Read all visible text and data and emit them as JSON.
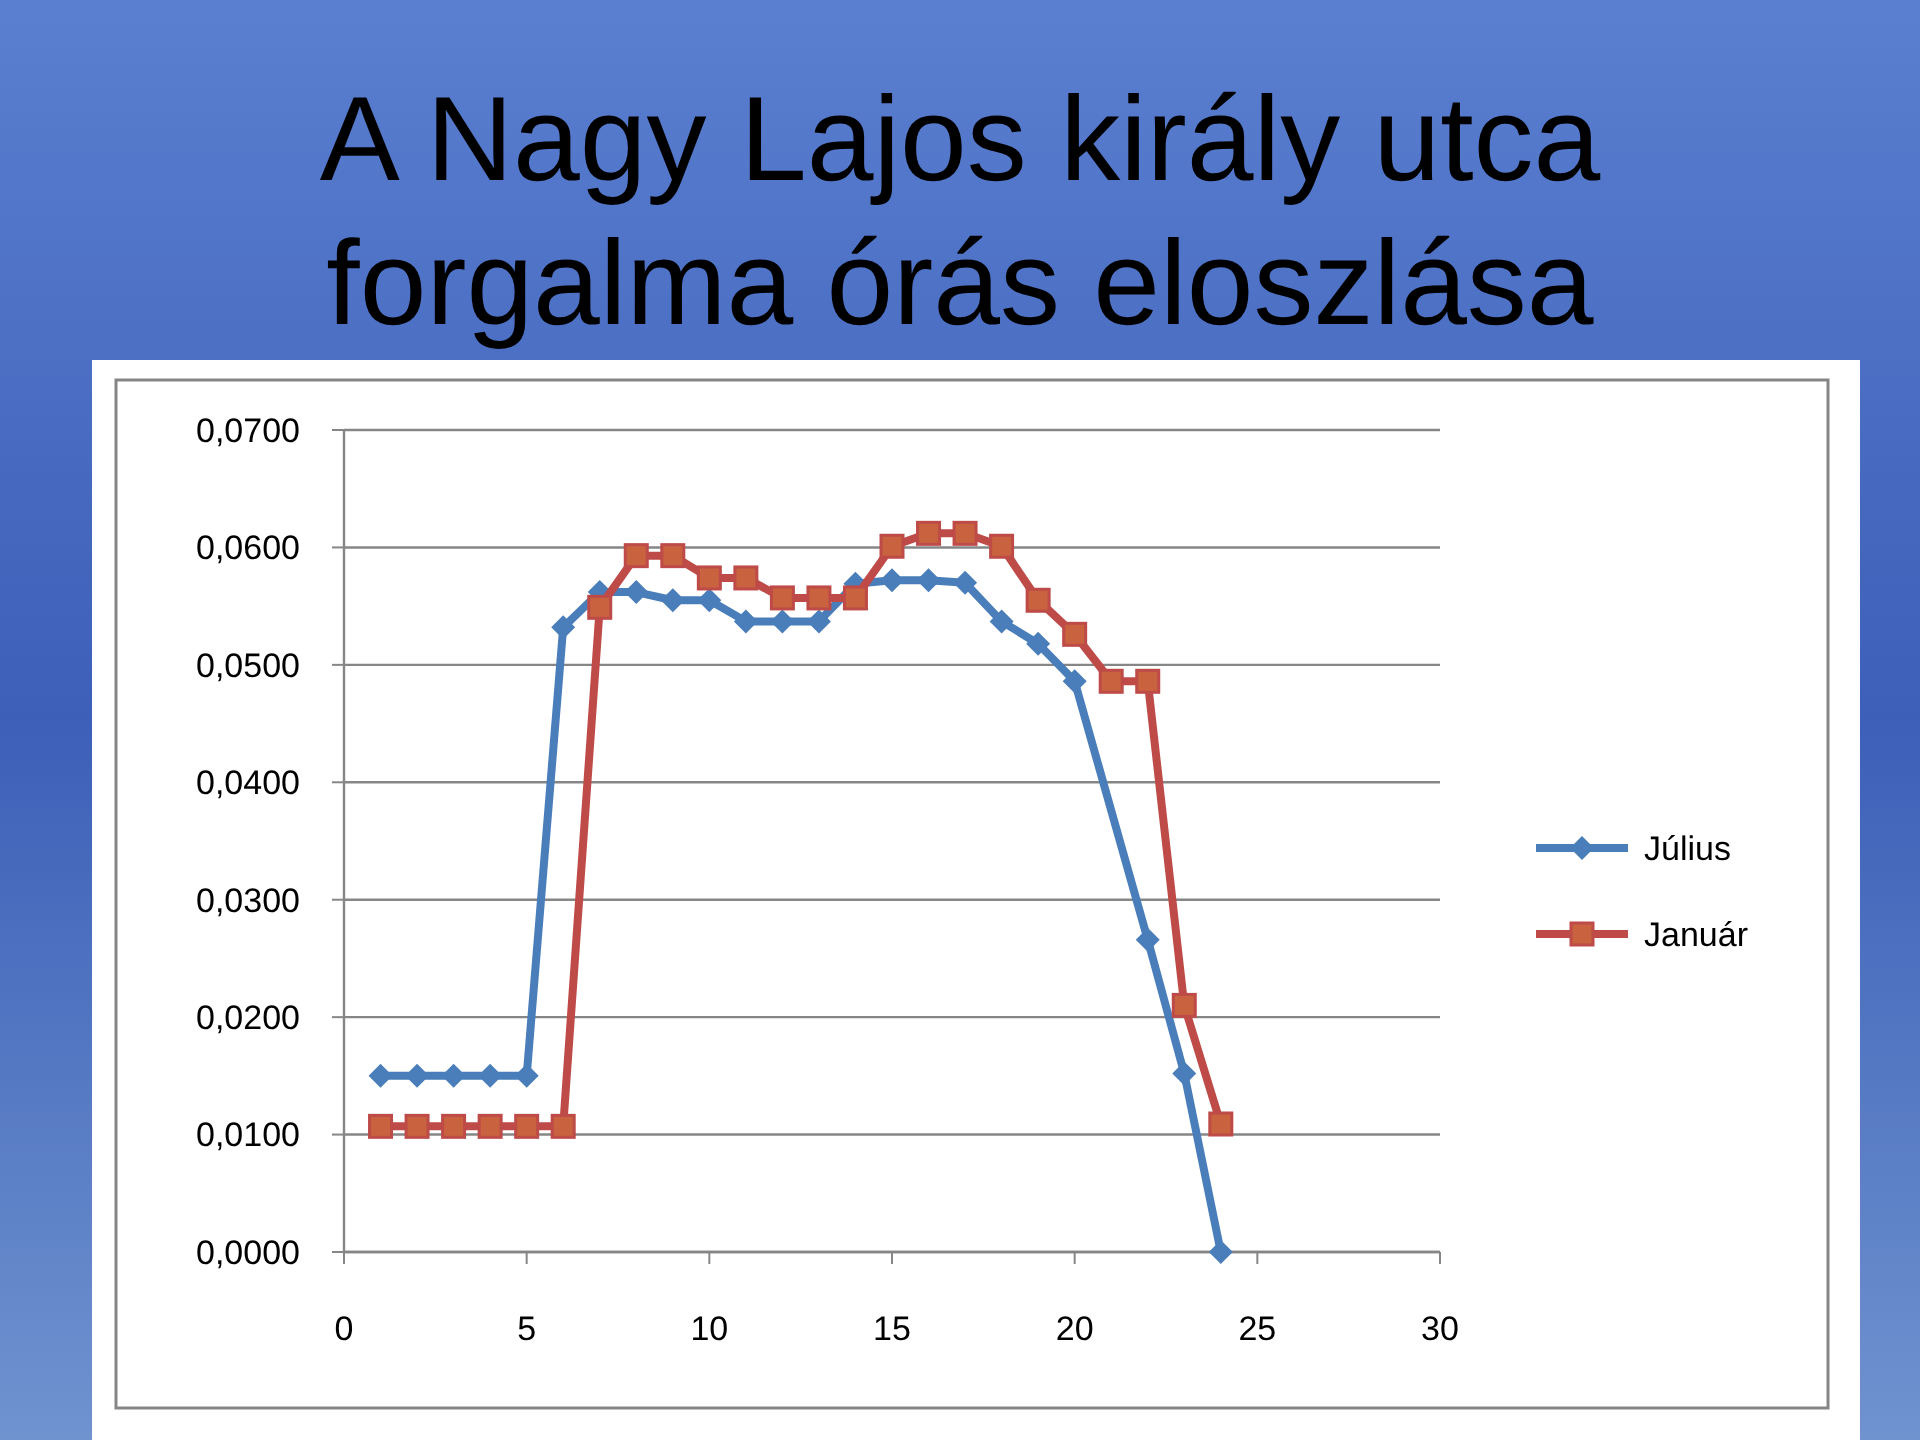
{
  "chart_data": {
    "type": "line",
    "title": "A Nagy Lajos király utca forgalma órás eloszlása",
    "xlim": [
      0,
      30
    ],
    "xticks": [
      0,
      5,
      10,
      15,
      20,
      25,
      30
    ],
    "ylim": [
      0,
      0.07
    ],
    "yticks": [
      {
        "value": 0,
        "label": "0,0000"
      },
      {
        "value": 0.01,
        "label": "0,0100"
      },
      {
        "value": 0.02,
        "label": "0,0200"
      },
      {
        "value": 0.03,
        "label": "0,0300"
      },
      {
        "value": 0.04,
        "label": "0,0400"
      },
      {
        "value": 0.05,
        "label": "0,0500"
      },
      {
        "value": 0.06,
        "label": "0,0600"
      },
      {
        "value": 0.07,
        "label": "0,0700"
      }
    ],
    "grid": "y",
    "legend": "right",
    "series": [
      {
        "name": "Július",
        "color": "#4a7ebb",
        "marker": "diamond",
        "x": [
          1,
          2,
          3,
          4,
          5,
          6,
          7,
          8,
          9,
          10,
          11,
          12,
          13,
          14,
          15,
          16,
          17,
          18,
          19,
          20,
          21,
          22,
          23,
          24
        ],
        "values": [
          0.015,
          0.015,
          0.015,
          0.015,
          0.015,
          0.0532,
          0.0562,
          0.0562,
          0.0555,
          0.0555,
          0.0537,
          0.0537,
          0.0537,
          0.0569,
          0.0572,
          0.0572,
          0.057,
          0.0537,
          0.0518,
          0.0486,
          null,
          0.0266,
          0.0152,
          0.0
        ]
      },
      {
        "name": "Január",
        "color": "#be4b48",
        "marker": "square",
        "x": [
          1,
          2,
          3,
          4,
          5,
          6,
          7,
          8,
          9,
          10,
          11,
          12,
          13,
          14,
          15,
          16,
          17,
          18,
          19,
          20,
          21,
          22,
          23,
          24
        ],
        "values": [
          0.0107,
          0.0107,
          0.0107,
          0.0107,
          0.0107,
          0.0107,
          0.0549,
          0.0593,
          0.0593,
          0.0574,
          0.0574,
          0.0557,
          0.0557,
          0.0557,
          0.0601,
          0.0612,
          0.0612,
          0.0601,
          0.0555,
          0.0526,
          0.0486,
          0.0486,
          0.021,
          0.0109
        ]
      }
    ]
  }
}
